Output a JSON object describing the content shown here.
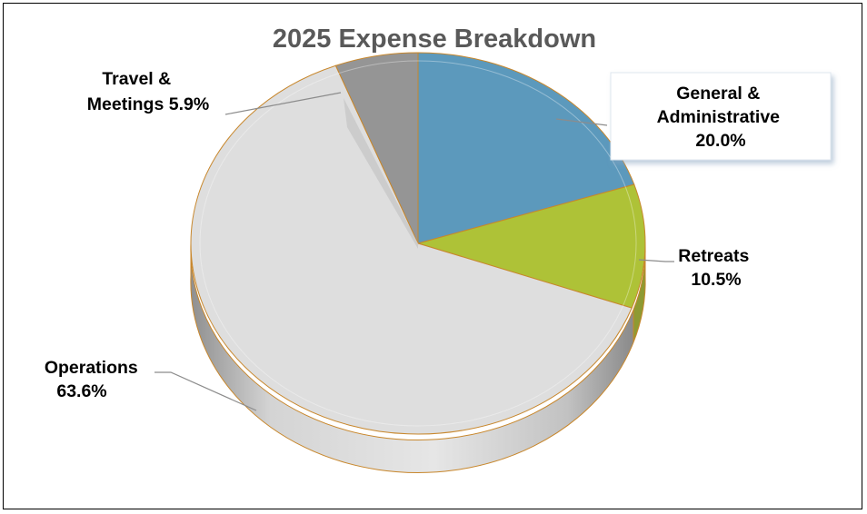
{
  "chart_data": {
    "type": "pie",
    "title": "2025 Expense Breakdown",
    "style": "3d-tilted",
    "slices": [
      {
        "name": "General & Administrative",
        "value": 20.0,
        "label_lines": [
          "General &",
          "Administrative",
          "20.0%"
        ],
        "color": "#4e90b6"
      },
      {
        "name": "Retreats",
        "value": 10.5,
        "label_lines": [
          "Retreats",
          "10.5%"
        ],
        "color": "#a7bd26"
      },
      {
        "name": "Operations",
        "value": 63.6,
        "label_lines": [
          "Operations",
          "63.6%"
        ],
        "color": "#dcdcdc"
      },
      {
        "name": "Travel & Meetings",
        "value": 5.9,
        "label_lines": [
          "Travel &",
          "Meetings 5.9%"
        ],
        "color": "#8c8c8c"
      }
    ],
    "legend": "none",
    "data_labels": "outside with leader lines"
  }
}
